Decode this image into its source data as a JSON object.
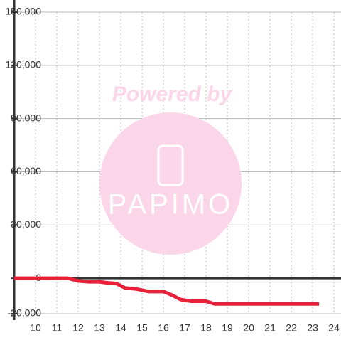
{
  "chart_data": {
    "type": "line",
    "watermark": {
      "line1": "Powered by",
      "line2": "PAPIMO"
    },
    "x": [
      9,
      11.5,
      12,
      12.5,
      13,
      13.3,
      13.8,
      14.2,
      14.7,
      15.3,
      16,
      16.4,
      16.8,
      17.3,
      18,
      18.4,
      23.3
    ],
    "series": [
      {
        "color": "#e8213a",
        "values": [
          0,
          0,
          -1500,
          -2000,
          -2000,
          -2500,
          -3000,
          -5500,
          -6000,
          -7500,
          -7500,
          -9500,
          -12000,
          -13000,
          -13000,
          -14500,
          -14500
        ]
      }
    ],
    "xlim": [
      9,
      24.33
    ],
    "xticks": [
      10,
      11,
      12,
      13,
      14,
      15,
      16,
      17,
      18,
      19,
      20,
      21,
      22,
      23,
      24
    ],
    "ylim": [
      -20000,
      150000
    ],
    "yticks": [
      {
        "value": -20000,
        "label": "-20,000"
      },
      0,
      {
        "value": 30000,
        "label": "30,000"
      },
      {
        "value": 60000,
        "label": "60,000"
      },
      {
        "value": 90000,
        "label": "90,000"
      },
      {
        "value": 120000,
        "label": "120,000"
      },
      {
        "value": 150000,
        "label": "150,000"
      }
    ],
    "grid": true
  }
}
